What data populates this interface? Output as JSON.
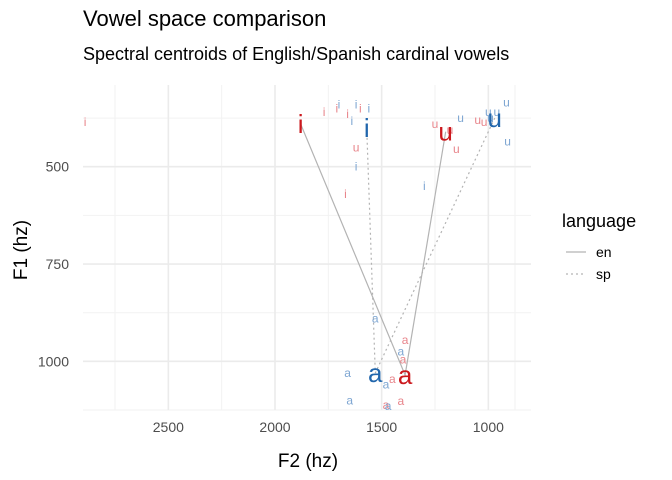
{
  "title": "Vowel space comparison",
  "subtitle": "Spectral centroids of English/Spanish cardinal vowels",
  "chart_data": {
    "type": "scatter",
    "title": "Vowel space comparison",
    "subtitle": "Spectral centroids of English/Spanish cardinal vowels",
    "xlabel": "F2 (hz)",
    "ylabel": "F1 (hz)",
    "x_reversed": true,
    "y_reversed": true,
    "xlim": [
      2900,
      800
    ],
    "ylim": [
      290,
      1125
    ],
    "x_ticks": [
      2500,
      2000,
      1500,
      1000
    ],
    "y_ticks": [
      500,
      750,
      1000
    ],
    "grid": true,
    "legend": {
      "title": "language",
      "position": "right",
      "entries": [
        {
          "label": "en",
          "line": "solid",
          "color": "#b3b3b3"
        },
        {
          "label": "sp",
          "line": "dotted",
          "color": "#b3b3b3"
        }
      ]
    },
    "colors": {
      "en": "#cb181d",
      "sp": "#2166ac"
    },
    "series": [
      {
        "language": "en",
        "centroids": [
          {
            "vowel": "i",
            "x": 1880,
            "y": 390
          },
          {
            "vowel": "u",
            "x": 1200,
            "y": 410
          },
          {
            "vowel": "a",
            "x": 1390,
            "y": 1035
          }
        ],
        "tokens": [
          {
            "vowel": "i",
            "x": 2890,
            "y": 385
          },
          {
            "vowel": "i",
            "x": 1770,
            "y": 360
          },
          {
            "vowel": "i",
            "x": 1710,
            "y": 350
          },
          {
            "vowel": "i",
            "x": 1660,
            "y": 365
          },
          {
            "vowel": "i",
            "x": 1600,
            "y": 350
          },
          {
            "vowel": "i",
            "x": 1670,
            "y": 570
          },
          {
            "vowel": "u",
            "x": 1620,
            "y": 450
          },
          {
            "vowel": "u",
            "x": 1250,
            "y": 390
          },
          {
            "vowel": "u",
            "x": 1180,
            "y": 405
          },
          {
            "vowel": "u",
            "x": 1150,
            "y": 455
          },
          {
            "vowel": "u",
            "x": 1050,
            "y": 380
          },
          {
            "vowel": "u",
            "x": 1020,
            "y": 385
          },
          {
            "vowel": "a",
            "x": 1390,
            "y": 945
          },
          {
            "vowel": "a",
            "x": 1400,
            "y": 995
          },
          {
            "vowel": "a",
            "x": 1450,
            "y": 1045
          },
          {
            "vowel": "a",
            "x": 1410,
            "y": 1102
          },
          {
            "vowel": "a",
            "x": 1480,
            "y": 1112
          }
        ]
      },
      {
        "language": "sp",
        "centroids": [
          {
            "vowel": "i",
            "x": 1570,
            "y": 400
          },
          {
            "vowel": "u",
            "x": 970,
            "y": 375
          },
          {
            "vowel": "a",
            "x": 1530,
            "y": 1030
          }
        ],
        "tokens": [
          {
            "vowel": "i",
            "x": 1700,
            "y": 340
          },
          {
            "vowel": "i",
            "x": 1620,
            "y": 340
          },
          {
            "vowel": "i",
            "x": 1560,
            "y": 350
          },
          {
            "vowel": "i",
            "x": 1640,
            "y": 382
          },
          {
            "vowel": "i",
            "x": 1620,
            "y": 500
          },
          {
            "vowel": "i",
            "x": 1300,
            "y": 550
          },
          {
            "vowel": "u",
            "x": 1130,
            "y": 375
          },
          {
            "vowel": "u",
            "x": 1000,
            "y": 360
          },
          {
            "vowel": "u",
            "x": 960,
            "y": 360
          },
          {
            "vowel": "u",
            "x": 990,
            "y": 375
          },
          {
            "vowel": "u",
            "x": 915,
            "y": 335
          },
          {
            "vowel": "u",
            "x": 910,
            "y": 435
          },
          {
            "vowel": "a",
            "x": 1530,
            "y": 890
          },
          {
            "vowel": "a",
            "x": 1410,
            "y": 975
          },
          {
            "vowel": "a",
            "x": 1660,
            "y": 1030
          },
          {
            "vowel": "a",
            "x": 1480,
            "y": 1060
          },
          {
            "vowel": "a",
            "x": 1650,
            "y": 1100
          },
          {
            "vowel": "a",
            "x": 1470,
            "y": 1115
          }
        ]
      }
    ]
  }
}
